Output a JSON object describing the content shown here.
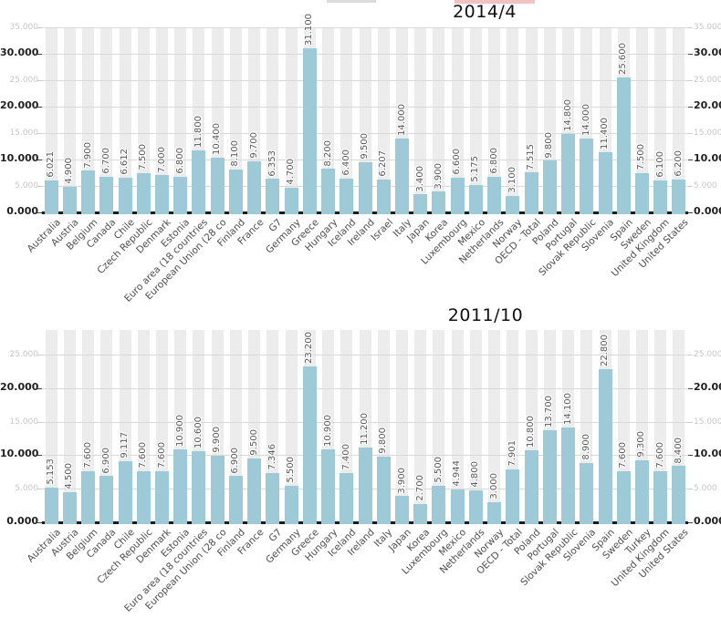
{
  "page": {
    "background": "#ffffff",
    "clipped_fragments": [
      {
        "name": "gray-clipped-text-fragment",
        "color": "#dcdcdc"
      },
      {
        "name": "red-clipped-text-fragment",
        "color": "#f0c2c2"
      }
    ]
  },
  "style": {
    "bar_color": "#9ec9d7",
    "stripe_color": "#ececec",
    "gridline_color": "#d9d9d9",
    "axis_line_color": "#1a1a1a",
    "value_label_color": "#595959",
    "x_label_color": "#4d4d4d",
    "y_label_dark_color": "#1f1f1f",
    "y_label_light_color": "#c6c6c6",
    "title_color": "#111111"
  },
  "chart_data": [
    {
      "type": "bar",
      "title": "2014/4",
      "grid": true,
      "legend_position": "none",
      "ylim": [
        0,
        35
      ],
      "yticks": [
        0,
        5,
        10,
        15,
        20,
        25,
        30,
        35
      ],
      "ytick_labels": [
        "0.000",
        "5.000",
        "10.000",
        "15.000",
        "20.000",
        "25.000",
        "30.000",
        "35.000"
      ],
      "ytick_label_sides": [
        "left",
        "right"
      ],
      "categories": [
        "Australia",
        "Austria",
        "Belgium",
        "Canada",
        "Chile",
        "Czech Republic",
        "Denmark",
        "Estonia",
        "Euro area (18 countries",
        "European Union (28 co",
        "Finland",
        "France",
        "G7",
        "Germany",
        "Greece",
        "Hungary",
        "Iceland",
        "Ireland",
        "Israel",
        "Italy",
        "Japan",
        "Korea",
        "Luxembourg",
        "Mexico",
        "Netherlands",
        "Norway",
        "OECD - Total",
        "Poland",
        "Portugal",
        "Slovak Republic",
        "Slovenia",
        "Spain",
        "Sweden",
        "United Kingdom",
        "United States"
      ],
      "values": [
        6.021,
        4.9,
        7.9,
        6.7,
        6.612,
        7.5,
        7.0,
        6.8,
        11.8,
        10.4,
        8.1,
        9.7,
        6.353,
        4.7,
        31.1,
        8.2,
        6.4,
        9.5,
        6.207,
        14.0,
        3.4,
        3.9,
        6.6,
        5.175,
        6.8,
        3.1,
        7.515,
        9.8,
        14.8,
        14.0,
        11.4,
        25.6,
        7.5,
        6.1,
        6.2
      ],
      "value_labels": [
        "6.021",
        "4.900",
        "7.900",
        "6.700",
        "6.612",
        "7.500",
        "7.000",
        "6.800",
        "11.800",
        "10.400",
        "8.100",
        "9.700",
        "6.353",
        "4.700",
        "31.100",
        "8.200",
        "6.400",
        "9.500",
        "6.207",
        "14.000",
        "3.400",
        "3.900",
        "6.600",
        "5.175",
        "6.800",
        "3.100",
        "7.515",
        "9.800",
        "14.800",
        "14.000",
        "11.400",
        "25.600",
        "7.500",
        "6.100",
        "6.200"
      ]
    },
    {
      "type": "bar",
      "title": "2011/10",
      "grid": true,
      "legend_position": "none",
      "ylim": [
        0,
        25
      ],
      "yticks": [
        0,
        5,
        10,
        15,
        20,
        25
      ],
      "ytick_labels": [
        "0.000",
        "5.000",
        "10.000",
        "15.000",
        "20.000",
        "25.000"
      ],
      "ytick_label_sides": [
        "left",
        "right"
      ],
      "categories": [
        "Australia",
        "Austria",
        "Belgium",
        "Canada",
        "Chile",
        "Czech Republic",
        "Denmark",
        "Estonia",
        "Euro area (18 countries",
        "European Union (28 co",
        "Finland",
        "France",
        "G7",
        "Germany",
        "Greece",
        "Hungary",
        "Iceland",
        "Ireland",
        "Italy",
        "Japan",
        "Korea",
        "Luxembourg",
        "Mexico",
        "Netherlands",
        "Norway",
        "OECD - Total",
        "Poland",
        "Portugal",
        "Slovak Republic",
        "Slovenia",
        "Spain",
        "Sweden",
        "Turkey",
        "United Kingdom",
        "United States"
      ],
      "values": [
        5.153,
        4.5,
        7.6,
        6.9,
        9.117,
        7.6,
        7.6,
        10.9,
        10.6,
        9.9,
        6.9,
        9.5,
        7.346,
        5.5,
        23.2,
        10.9,
        7.4,
        11.2,
        9.8,
        3.9,
        2.7,
        5.5,
        4.944,
        4.8,
        3.0,
        7.901,
        10.8,
        13.7,
        14.1,
        8.9,
        22.8,
        7.6,
        9.3,
        7.6,
        8.4
      ],
      "value_labels": [
        "5.153",
        "4.500",
        "7.600",
        "6.900",
        "9.117",
        "7.600",
        "7.600",
        "10.900",
        "10.600",
        "9.900",
        "6.900",
        "9.500",
        "7.346",
        "5.500",
        "23.200",
        "10.900",
        "7.400",
        "11.200",
        "9.800",
        "3.900",
        "2.700",
        "5.500",
        "4.944",
        "4.800",
        "3.000",
        "7.901",
        "10.800",
        "13.700",
        "14.100",
        "8.900",
        "22.800",
        "7.600",
        "9.300",
        "7.600",
        "8.400"
      ]
    }
  ]
}
